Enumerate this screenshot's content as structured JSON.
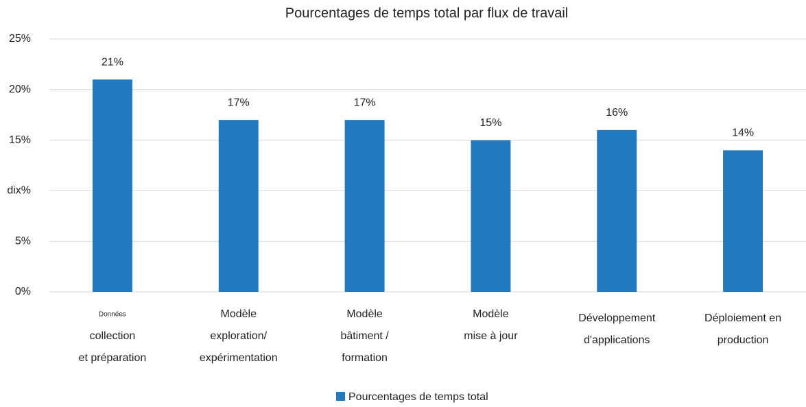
{
  "chart_data": {
    "type": "bar",
    "title": "Pourcentages de temps total par flux de travail",
    "categories": [
      [
        "Données",
        "collection",
        "et préparation"
      ],
      [
        "Modèle",
        "exploration/",
        "expérimentation"
      ],
      [
        "Modèle",
        "bâtiment /",
        "formation"
      ],
      [
        "Modèle",
        "mise à jour"
      ],
      [
        "Développement",
        "d'applications"
      ],
      [
        "Déploiement en",
        "production"
      ]
    ],
    "series": [
      {
        "name": "Pourcentages de temps total",
        "color": "#2379be",
        "values": [
          21,
          17,
          17,
          15,
          16,
          14
        ],
        "value_labels": [
          "21%",
          "17%",
          "17%",
          "15%",
          "16%",
          "14%"
        ]
      }
    ],
    "ylim": [
      0,
      25
    ],
    "yticks": [
      {
        "value": 0,
        "label": "0%"
      },
      {
        "value": 5,
        "label": "5%"
      },
      {
        "value": 10,
        "label": "dix%"
      },
      {
        "value": 15,
        "label": "15%"
      },
      {
        "value": 20,
        "label": "20%"
      },
      {
        "value": 25,
        "label": "25%"
      }
    ],
    "grid": true,
    "legend": "bottom"
  }
}
